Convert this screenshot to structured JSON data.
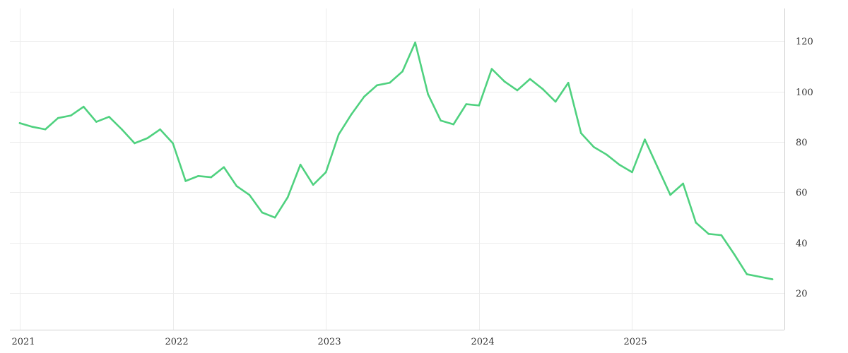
{
  "chart_data": {
    "type": "line",
    "title": "",
    "xlabel": "",
    "ylabel": "",
    "x_ticks": [
      "2021",
      "2022",
      "2023",
      "2024",
      "2025"
    ],
    "y_ticks": [
      20,
      40,
      60,
      80,
      100,
      120
    ],
    "xlim": [
      "2021-01",
      "2025-12"
    ],
    "ylim": [
      8,
      133
    ],
    "y_axis_position": "right",
    "grid": true,
    "legend": "none",
    "series": [
      {
        "color": "#4fd17f",
        "points": [
          [
            "2021-01",
            87.5
          ],
          [
            "2021-02",
            86
          ],
          [
            "2021-03",
            85
          ],
          [
            "2021-04",
            89.5
          ],
          [
            "2021-05",
            90.5
          ],
          [
            "2021-06",
            94
          ],
          [
            "2021-07",
            88
          ],
          [
            "2021-08",
            90
          ],
          [
            "2021-09",
            85
          ],
          [
            "2021-10",
            79.5
          ],
          [
            "2021-11",
            81.5
          ],
          [
            "2021-12",
            85
          ],
          [
            "2022-01",
            79.5
          ],
          [
            "2022-02",
            64.5
          ],
          [
            "2022-03",
            66.5
          ],
          [
            "2022-04",
            66
          ],
          [
            "2022-05",
            70
          ],
          [
            "2022-06",
            62.5
          ],
          [
            "2022-07",
            59
          ],
          [
            "2022-08",
            52
          ],
          [
            "2022-09",
            50
          ],
          [
            "2022-10",
            58
          ],
          [
            "2022-11",
            71
          ],
          [
            "2022-12",
            63
          ],
          [
            "2023-01",
            68
          ],
          [
            "2023-02",
            83
          ],
          [
            "2023-03",
            91
          ],
          [
            "2023-04",
            98
          ],
          [
            "2023-05",
            102.5
          ],
          [
            "2023-06",
            103.5
          ],
          [
            "2023-07",
            108
          ],
          [
            "2023-08",
            119.5
          ],
          [
            "2023-09",
            99
          ],
          [
            "2023-10",
            88.5
          ],
          [
            "2023-11",
            87
          ],
          [
            "2023-12",
            95
          ],
          [
            "2024-01",
            94.5
          ],
          [
            "2024-02",
            109
          ],
          [
            "2024-03",
            104
          ],
          [
            "2024-04",
            100.5
          ],
          [
            "2024-05",
            105
          ],
          [
            "2024-06",
            101
          ],
          [
            "2024-07",
            96
          ],
          [
            "2024-08",
            103.5
          ],
          [
            "2024-09",
            83.5
          ],
          [
            "2024-10",
            78
          ],
          [
            "2024-11",
            75
          ],
          [
            "2024-12",
            71
          ],
          [
            "2025-01",
            68
          ],
          [
            "2025-02",
            81
          ],
          [
            "2025-03",
            70
          ],
          [
            "2025-04",
            59
          ],
          [
            "2025-05",
            63.5
          ],
          [
            "2025-06",
            48
          ],
          [
            "2025-07",
            43.5
          ],
          [
            "2025-08",
            43
          ],
          [
            "2025-09",
            35.5
          ],
          [
            "2025-10",
            27.5
          ],
          [
            "2025-11",
            26.5
          ],
          [
            "2025-12",
            25.5
          ]
        ]
      }
    ]
  }
}
